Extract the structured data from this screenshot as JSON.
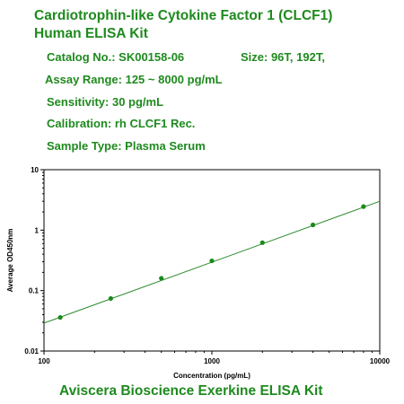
{
  "header": {
    "title_line1": "Cardiotrophin-like Cytokine Factor 1 (CLCF1)",
    "title_line2": "Human ELISA Kit"
  },
  "info": {
    "catalog": "Catalog No.: SK00158-06",
    "size": "Size: 96T, 192T,",
    "assay_range": "Assay Range: 125 ~ 8000 pg/mL",
    "sensitivity": "Sensitivity: 30 pg/mL",
    "calibration": "Calibration: rh CLCF1 Rec.",
    "sample_type": "Sample Type: Plasma Serum"
  },
  "footer": {
    "text": "Aviscera Bioscience Exerkine ELISA Kit"
  },
  "colors": {
    "text_green": "#1e8a1e",
    "line": "#2e8b2e",
    "marker": "#1a8a1a"
  },
  "chart_data": {
    "type": "scatter",
    "xlabel": "Concentration (pg/mL)",
    "ylabel": "Average OD450nm",
    "xscale": "log",
    "yscale": "log",
    "xlim": [
      100,
      10000
    ],
    "ylim": [
      0.01,
      10
    ],
    "x_ticks": [
      "100",
      "1000",
      "10000"
    ],
    "y_ticks": [
      "0.01",
      "0.1",
      "1",
      "10"
    ],
    "grid": false,
    "points": [
      {
        "x": 125,
        "y": 0.036
      },
      {
        "x": 250,
        "y": 0.074
      },
      {
        "x": 500,
        "y": 0.16
      },
      {
        "x": 1000,
        "y": 0.31
      },
      {
        "x": 2000,
        "y": 0.62
      },
      {
        "x": 4000,
        "y": 1.22
      },
      {
        "x": 8000,
        "y": 2.45
      }
    ],
    "fit_line": {
      "x": [
        100,
        10000
      ],
      "y": [
        0.029,
        3.0
      ]
    }
  }
}
